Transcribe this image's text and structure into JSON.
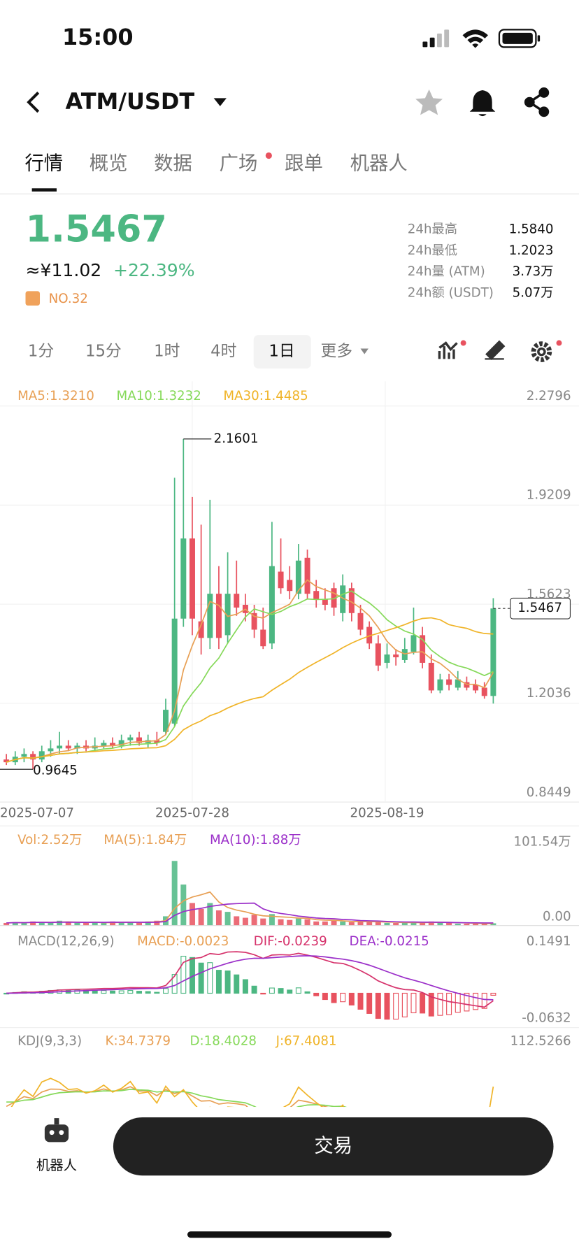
{
  "status": {
    "time": "15:00"
  },
  "header": {
    "pair": "ATM/USDT"
  },
  "tabs": [
    "行情",
    "概览",
    "数据",
    "广场",
    "跟单",
    "机器人"
  ],
  "price": {
    "last": "1.5467",
    "cny": "≈¥11.02",
    "change": "+22.39%",
    "rank": "NO.32"
  },
  "stats": [
    {
      "label": "24h最高",
      "value": "1.5840"
    },
    {
      "label": "24h最低",
      "value": "1.2023"
    },
    {
      "label": "24h量 (ATM)",
      "value": "3.73万"
    },
    {
      "label": "24h额 (USDT)",
      "value": "5.07万"
    }
  ],
  "intervals": [
    "1分",
    "15分",
    "1时",
    "4时",
    "1日",
    "更多"
  ],
  "chart_data": [
    {
      "type": "candlestick",
      "legend": [
        "MA5:1.3210",
        "MA10:1.3232",
        "MA30:1.4485"
      ],
      "categories": [
        "2025-07-07",
        null,
        null,
        null,
        null,
        null,
        null,
        null,
        null,
        null,
        null,
        null,
        null,
        null,
        null,
        null,
        null,
        null,
        null,
        null,
        null,
        "2025-07-28",
        null,
        null,
        null,
        null,
        null,
        null,
        null,
        null,
        null,
        null,
        null,
        null,
        null,
        null,
        null,
        null,
        null,
        null,
        null,
        null,
        null,
        "2025-08-19",
        null,
        null,
        null,
        null,
        null,
        null,
        null,
        null,
        null,
        null,
        null,
        null
      ],
      "open": [
        1.0,
        0.99,
        1.01,
        1.02,
        1.0,
        1.03,
        1.04,
        1.05,
        1.04,
        1.05,
        1.04,
        1.05,
        1.06,
        1.05,
        1.07,
        1.08,
        1.06,
        1.07,
        1.1,
        1.13,
        1.51,
        1.8,
        1.5,
        1.44,
        1.6,
        1.45,
        1.6,
        1.56,
        1.53,
        1.47,
        1.42,
        1.68,
        1.65,
        1.6,
        1.73,
        1.61,
        1.58,
        1.62,
        1.53,
        1.62,
        1.53,
        1.48,
        1.42,
        1.35,
        1.38,
        1.36,
        1.39,
        1.45,
        1.35,
        1.25,
        1.29,
        1.26,
        1.28,
        1.27,
        1.26,
        1.23
      ],
      "high": [
        1.02,
        1.03,
        1.04,
        1.03,
        1.05,
        1.07,
        1.1,
        1.07,
        1.06,
        1.07,
        1.08,
        1.07,
        1.08,
        1.09,
        1.09,
        1.1,
        1.09,
        1.1,
        1.22,
        2.02,
        2.1601,
        1.95,
        1.85,
        1.94,
        1.7,
        1.75,
        1.72,
        1.6,
        1.56,
        1.55,
        1.86,
        1.8,
        1.7,
        1.78,
        1.76,
        1.65,
        1.62,
        1.64,
        1.67,
        1.64,
        1.56,
        1.5,
        1.45,
        1.42,
        1.4,
        1.44,
        1.55,
        1.48,
        1.38,
        1.31,
        1.31,
        1.32,
        1.3,
        1.29,
        1.28,
        1.584
      ],
      "low": [
        0.98,
        0.98,
        0.99,
        0.9645,
        0.99,
        1.01,
        1.02,
        1.03,
        1.02,
        1.03,
        1.03,
        1.04,
        1.04,
        1.04,
        1.05,
        1.05,
        1.04,
        1.05,
        1.09,
        1.12,
        1.48,
        1.45,
        1.38,
        1.4,
        1.4,
        1.42,
        1.52,
        1.5,
        1.44,
        1.4,
        1.4,
        1.6,
        1.58,
        1.58,
        1.58,
        1.55,
        1.54,
        1.52,
        1.5,
        1.5,
        1.45,
        1.4,
        1.32,
        1.33,
        1.34,
        1.35,
        1.38,
        1.33,
        1.24,
        1.24,
        1.25,
        1.25,
        1.25,
        1.24,
        1.22,
        1.2023
      ],
      "close": [
        0.99,
        1.01,
        1.02,
        1.0,
        1.03,
        1.04,
        1.05,
        1.04,
        1.05,
        1.04,
        1.05,
        1.06,
        1.05,
        1.07,
        1.08,
        1.06,
        1.07,
        1.06,
        1.18,
        1.51,
        1.8,
        1.51,
        1.44,
        1.6,
        1.44,
        1.6,
        1.55,
        1.53,
        1.47,
        1.41,
        1.7,
        1.62,
        1.61,
        1.72,
        1.6,
        1.58,
        1.56,
        1.55,
        1.63,
        1.53,
        1.47,
        1.42,
        1.34,
        1.38,
        1.37,
        1.4,
        1.45,
        1.35,
        1.25,
        1.29,
        1.27,
        1.29,
        1.26,
        1.25,
        1.23,
        1.5467
      ],
      "up_color": "#4cb782",
      "down_color": "#e8525f",
      "ma_colors": [
        "#e8a055",
        "#86d95a",
        "#f0b429"
      ],
      "ylim": [
        0.8449,
        2.2796
      ],
      "yticks": [
        0.8449,
        1.2036,
        1.5623,
        1.9209,
        2.2796
      ],
      "grid": true
    },
    {
      "type": "volume",
      "legend": [
        "Vol:2.52万",
        "MA(5):1.84万",
        "MA(10):1.88万"
      ],
      "values": [
        3,
        4,
        3,
        5,
        4,
        3,
        6,
        4,
        3,
        3,
        4,
        3,
        5,
        4,
        4,
        3,
        5,
        6,
        12,
        87,
        55,
        30,
        22,
        30,
        20,
        18,
        12,
        10,
        14,
        9,
        15,
        8,
        7,
        9,
        8,
        5,
        5,
        6,
        5,
        4,
        5,
        4,
        5,
        3,
        3,
        3,
        4,
        4,
        5,
        3,
        3,
        2,
        2,
        2,
        2,
        2.52
      ],
      "ylim": [
        0,
        101.54
      ],
      "yticks": [
        {
          "value": 0,
          "label": "0.00"
        },
        {
          "value": 101.54,
          "label": "101.54万"
        }
      ],
      "legend_colors": [
        "#e8a055",
        "#e8a055",
        "#9b2fc9"
      ]
    },
    {
      "type": "macd",
      "legend": [
        "MACD(12,26,9)",
        "MACD:-0.0023",
        "DIF:-0.0239",
        "DEA:-0.0215"
      ],
      "ylim": [
        -0.0632,
        0.1491
      ],
      "yticks": [
        -0.0632,
        0.1491
      ],
      "legend_colors": [
        "#888",
        "#e8a055",
        "#d6336c",
        "#9b2fc9"
      ]
    },
    {
      "type": "kdj",
      "legend": [
        "KDJ(9,3,3)",
        "K:34.7379",
        "D:18.4028",
        "J:67.4081"
      ],
      "ylim": [
        0,
        112.5266
      ],
      "yticks": [
        112.5266
      ],
      "legend_colors": [
        "#888",
        "#e8a055",
        "#86d95a",
        "#f0b429"
      ]
    }
  ],
  "bottom": {
    "robot": "机器人",
    "trade": "交易"
  }
}
